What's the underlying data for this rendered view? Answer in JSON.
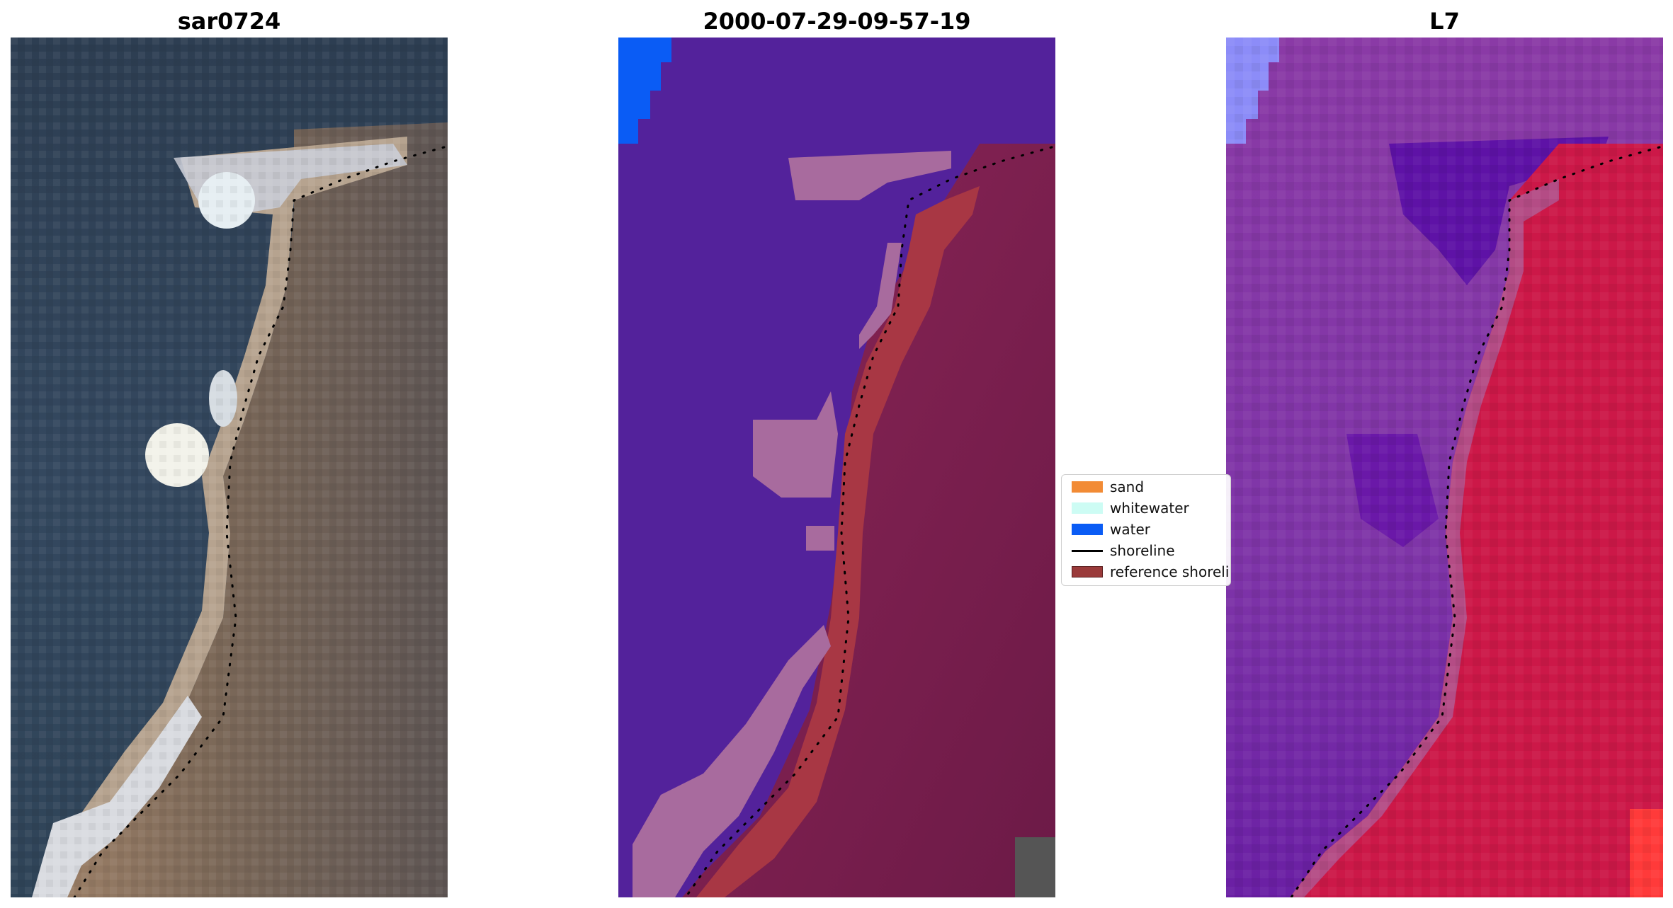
{
  "panels": [
    {
      "title": "sar0724"
    },
    {
      "title": "2000-07-29-09-57-19"
    },
    {
      "title": "L7"
    }
  ],
  "legend": {
    "items": [
      {
        "label": "sand",
        "color": "#f28b35",
        "kind": "patch"
      },
      {
        "label": "whitewater",
        "color": "#cdfcf4",
        "kind": "patch"
      },
      {
        "label": "water",
        "color": "#0a5cf5",
        "kind": "patch"
      },
      {
        "label": "shoreline",
        "color": "#000000",
        "kind": "line"
      },
      {
        "label": "reference shoreline buffer",
        "color": "#9a3a3a",
        "kind": "patch"
      }
    ]
  },
  "colors": {
    "rgb_water": "#33475e",
    "rgb_land": "#7a6a5a",
    "class_water": "#53229b",
    "class_whitewater": "#a86b9e",
    "class_blue": "#0a5cf5",
    "class_buffer": "#a83744",
    "class_land": "#7e1f4e",
    "mndwi_water": "#7d35a6",
    "mndwi_land": "#d21245"
  }
}
